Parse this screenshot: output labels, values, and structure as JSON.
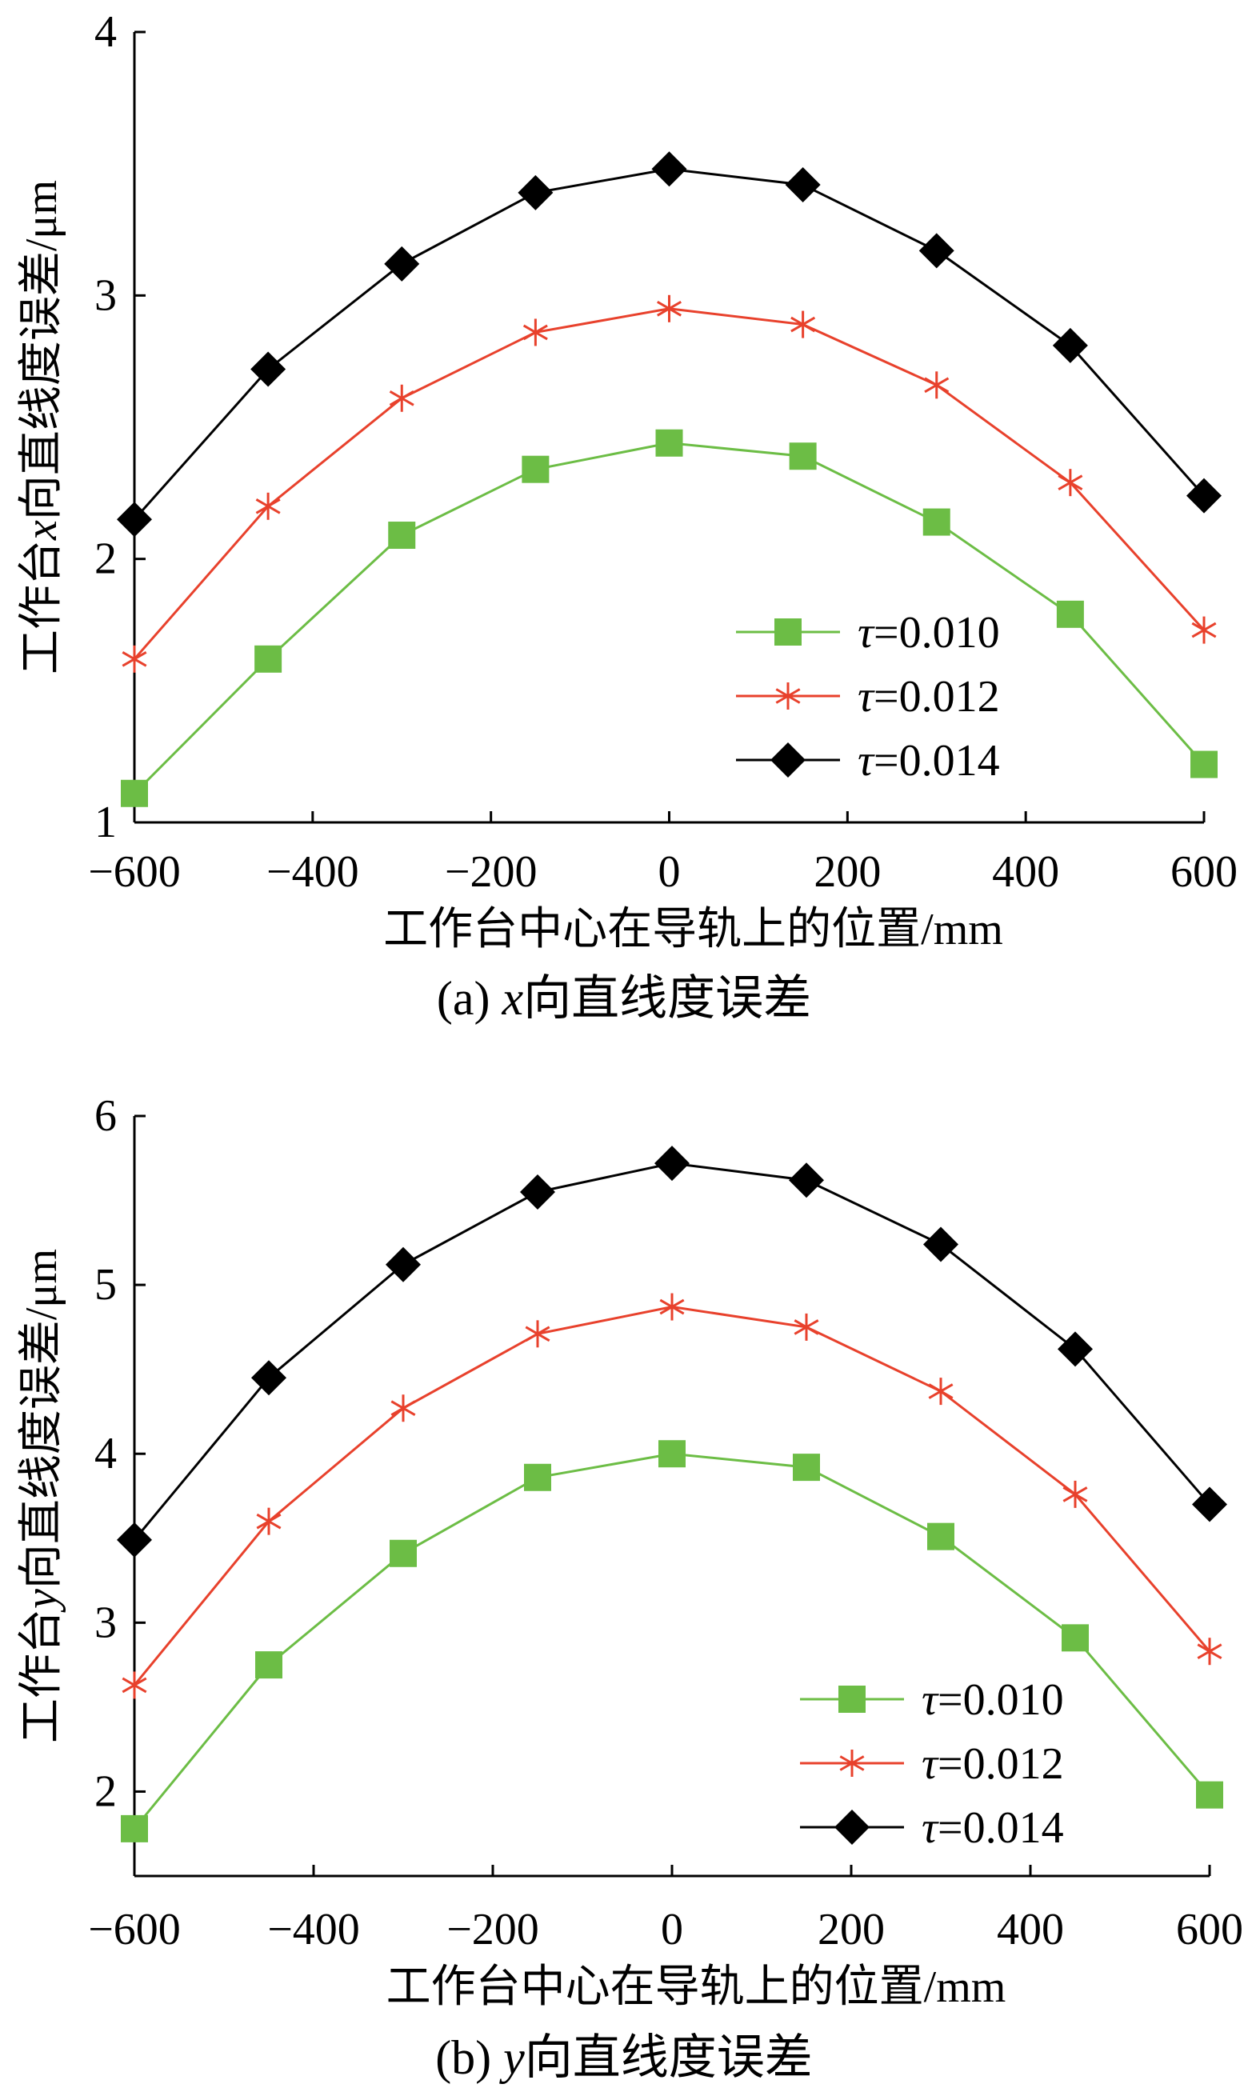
{
  "colors": {
    "green": "#6cbd45",
    "red": "#e8412c",
    "black": "#000000"
  },
  "chart_data": [
    {
      "type": "line",
      "caption_prefix": "(a) ",
      "caption_var": "x",
      "caption_rest": "向直线度误差",
      "xlabel": "工作台中心在导轨上的位置/mm",
      "ylabel_pre": "工作台",
      "ylabel_var": "x",
      "ylabel_post": "向直线度误差/μm",
      "xlim": [
        -600,
        600
      ],
      "ylim": [
        1,
        4
      ],
      "xticks": [
        "−600",
        "−400",
        "−200",
        "0",
        "200",
        "400",
        "600"
      ],
      "xtick_values": [
        -600,
        -400,
        -200,
        0,
        200,
        400,
        600
      ],
      "yticks": [
        "1",
        "2",
        "3",
        "4"
      ],
      "ytick_values": [
        1,
        2,
        3,
        4
      ],
      "legend_position": "lower-right",
      "x": [
        -600,
        -450,
        -300,
        -150,
        0,
        150,
        300,
        450,
        600
      ],
      "series": [
        {
          "name": "τ=0.010",
          "tau": "τ",
          "value": "=0.010",
          "marker": "square",
          "color": "#6cbd45",
          "values": [
            1.11,
            1.62,
            2.09,
            2.34,
            2.44,
            2.39,
            2.14,
            1.79,
            1.22
          ]
        },
        {
          "name": "τ=0.012",
          "tau": "τ",
          "value": "=0.012",
          "marker": "asterisk",
          "color": "#e8412c",
          "values": [
            1.62,
            2.2,
            2.61,
            2.86,
            2.95,
            2.89,
            2.66,
            2.29,
            1.73
          ]
        },
        {
          "name": "τ=0.014",
          "tau": "τ",
          "value": "=0.014",
          "marker": "diamond",
          "color": "#000000",
          "values": [
            2.15,
            2.72,
            3.12,
            3.39,
            3.48,
            3.42,
            3.17,
            2.81,
            2.24
          ]
        }
      ]
    },
    {
      "type": "line",
      "caption_prefix": "(b) ",
      "caption_var": "y",
      "caption_rest": "向直线度误差",
      "xlabel": "工作台中心在导轨上的位置/mm",
      "ylabel_pre": "工作台",
      "ylabel_var": "y",
      "ylabel_post": "向直线度误差/μm",
      "xlim": [
        -600,
        600
      ],
      "ylim": [
        1.5,
        6
      ],
      "xticks": [
        "−600",
        "−400",
        "−200",
        "0",
        "200",
        "400",
        "600"
      ],
      "xtick_values": [
        -600,
        -400,
        -200,
        0,
        200,
        400,
        600
      ],
      "yticks": [
        "2",
        "3",
        "4",
        "5",
        "6"
      ],
      "ytick_values": [
        2,
        3,
        4,
        5,
        6
      ],
      "legend_position": "lower-right",
      "x": [
        -600,
        -450,
        -300,
        -150,
        0,
        150,
        300,
        450,
        600
      ],
      "series": [
        {
          "name": "τ=0.010",
          "tau": "τ",
          "value": "=0.010",
          "marker": "square",
          "color": "#6cbd45",
          "values": [
            1.78,
            2.75,
            3.41,
            3.86,
            4.0,
            3.92,
            3.51,
            2.91,
            1.98
          ]
        },
        {
          "name": "τ=0.012",
          "tau": "τ",
          "value": "=0.012",
          "marker": "asterisk",
          "color": "#e8412c",
          "values": [
            2.63,
            3.6,
            4.27,
            4.71,
            4.87,
            4.75,
            4.37,
            3.76,
            2.83
          ]
        },
        {
          "name": "τ=0.014",
          "tau": "τ",
          "value": "=0.014",
          "marker": "diamond",
          "color": "#000000",
          "values": [
            3.49,
            4.45,
            5.12,
            5.55,
            5.72,
            5.62,
            5.24,
            4.62,
            3.7
          ]
        }
      ]
    }
  ]
}
